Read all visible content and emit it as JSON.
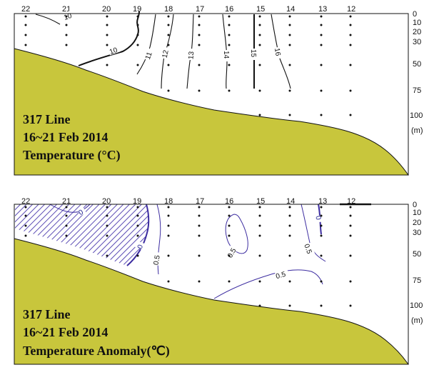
{
  "chart_data": [
    {
      "type": "contour",
      "title_lines": [
        "317 Line",
        "16~21 Feb 2014",
        "Temperature (°C)"
      ],
      "stations": [
        "22",
        "21",
        "20",
        "19",
        "18",
        "17",
        "16",
        "15",
        "14",
        "13",
        "12"
      ],
      "depth_ticks": [
        "0",
        "10",
        "20",
        "30",
        "50",
        "75",
        "100"
      ],
      "depth_unit": "(m)",
      "contour_levels": [
        10,
        11,
        12,
        13,
        14,
        15,
        16
      ],
      "contour_labels": [
        "10",
        "10",
        "11",
        "12",
        "13",
        "14",
        "15",
        "16"
      ],
      "bathymetry_color": "#c8c63c",
      "line_color": "#111111"
    },
    {
      "type": "contour",
      "title_lines": [
        "317 Line",
        "16~21 Feb 2014",
        "Temperature Anomaly(℃)"
      ],
      "stations": [
        "22",
        "21",
        "20",
        "19",
        "18",
        "17",
        "16",
        "15",
        "14",
        "13",
        "12"
      ],
      "depth_ticks": [
        "0",
        "10",
        "20",
        "30",
        "50",
        "75",
        "100"
      ],
      "depth_unit": "(m)",
      "contour_levels": [
        0,
        0.5
      ],
      "contour_labels": [
        "0",
        "0",
        "0.5",
        "0.5",
        "0.5",
        "0.5",
        "0"
      ],
      "negative_region": "hatched",
      "bathymetry_color": "#c8c63c",
      "line_color": "#3c2ca0"
    }
  ]
}
